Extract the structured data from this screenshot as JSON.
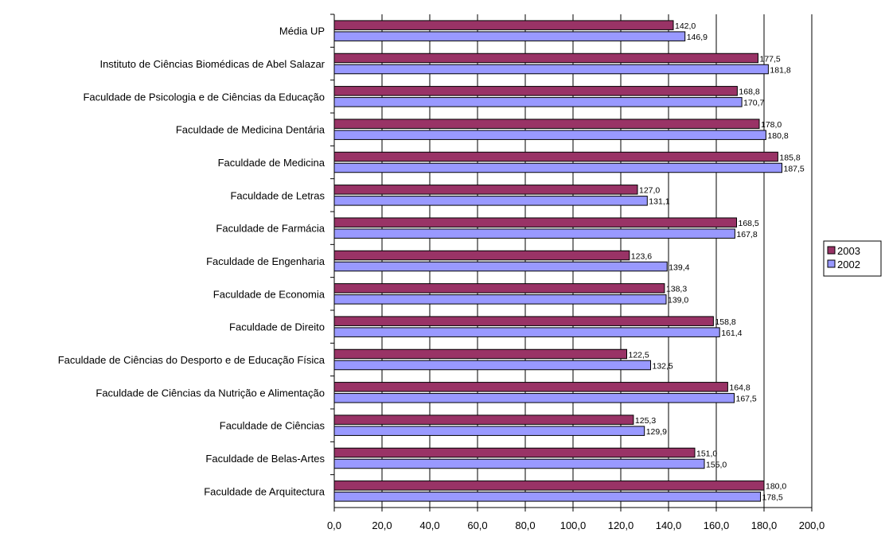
{
  "chart_data": {
    "type": "bar",
    "orientation": "horizontal",
    "title": "",
    "xlabel": "",
    "ylabel": "",
    "xlim": [
      0,
      200
    ],
    "x_ticks": [
      "0,0",
      "20,0",
      "40,0",
      "60,0",
      "80,0",
      "100,0",
      "120,0",
      "140,0",
      "160,0",
      "180,0",
      "200,0"
    ],
    "grid": "vertical",
    "legend_position": "right",
    "categories": [
      "Média UP",
      "Instituto de Ciências Biomédicas de Abel Salazar",
      "Faculdade de Psicologia e de Ciências da Educação",
      "Faculdade de Medicina Dentária",
      "Faculdade de Medicina",
      "Faculdade de Letras",
      "Faculdade de Farmácia",
      "Faculdade de Engenharia",
      "Faculdade de Economia",
      "Faculdade de Direito",
      "Faculdade de Ciências do Desporto e de Educação Física",
      "Faculdade de Ciências da Nutrição e Alimentação",
      "Faculdade de Ciências",
      "Faculdade de Belas-Artes",
      "Faculdade de Arquitectura"
    ],
    "series": [
      {
        "name": "2003",
        "color": "#993366",
        "values": [
          142.0,
          177.5,
          168.8,
          178.0,
          185.8,
          127.0,
          168.5,
          123.6,
          138.3,
          158.8,
          122.5,
          164.8,
          125.3,
          151.0,
          180.0
        ],
        "labels": [
          "142,0",
          "177,5",
          "168,8",
          "178,0",
          "185,8",
          "127,0",
          "168,5",
          "123,6",
          "138,3",
          "158,8",
          "122,5",
          "164,8",
          "125,3",
          "151,0",
          "180,0"
        ]
      },
      {
        "name": "2002",
        "color": "#9999ff",
        "values": [
          146.9,
          181.8,
          170.7,
          180.8,
          187.5,
          131.1,
          167.8,
          139.4,
          139.0,
          161.4,
          132.5,
          167.5,
          129.9,
          155.0,
          178.5
        ],
        "labels": [
          "146,9",
          "181,8",
          "170,7",
          "180,8",
          "187,5",
          "131,1",
          "167,8",
          "139,4",
          "139,0",
          "161,4",
          "132,5",
          "167,5",
          "129,9",
          "155,0",
          "178,5"
        ]
      }
    ]
  }
}
